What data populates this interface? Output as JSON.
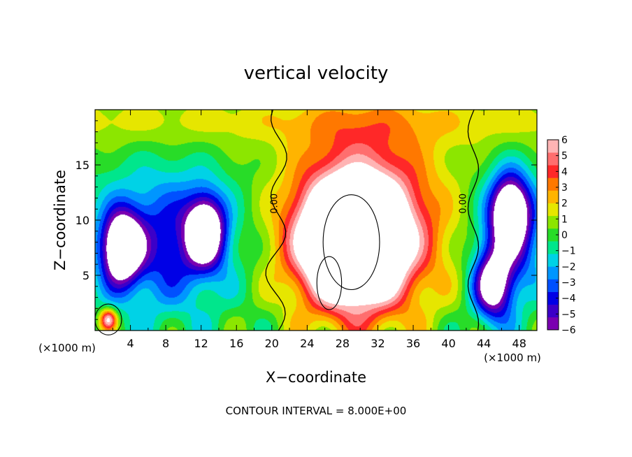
{
  "chart_data": {
    "type": "heatmap",
    "title": "vertical velocity",
    "xlabel": "X−coordinate",
    "ylabel": "Z−coordinate",
    "x_unit_label": "(×1000 m)",
    "y_unit_label": "(×1000 m)",
    "xlim": [
      0,
      50
    ],
    "ylim": [
      0,
      20
    ],
    "x_ticks": [
      4,
      8,
      12,
      16,
      20,
      24,
      28,
      32,
      36,
      40,
      44,
      48
    ],
    "y_ticks": [
      5,
      10,
      15
    ],
    "grid": false,
    "footnote": "CONTOUR INTERVAL = 8.000E+00",
    "contour_labels": [
      "0.00",
      "0.00"
    ],
    "colorbar": {
      "ticks": [
        "6",
        "5",
        "4",
        "3",
        "2",
        "1",
        "0",
        "−1",
        "−2",
        "−3",
        "−4",
        "−5",
        "−6"
      ],
      "range": [
        -6,
        6
      ],
      "colors": [
        "#7a00b0",
        "#3c00c8",
        "#0000e6",
        "#0050ff",
        "#0096ff",
        "#00d2e6",
        "#00e68c",
        "#28dc28",
        "#8ce600",
        "#e6e600",
        "#ffb400",
        "#ff7800",
        "#ff2828",
        "#ff6e6e",
        "#ffb4b4"
      ],
      "above_max_color": "#ffffff",
      "below_min_color": "#ffffff"
    },
    "features": [
      {
        "kind": "updraft",
        "x": 29,
        "z": 8,
        "peak": 12
      },
      {
        "kind": "updraft",
        "x": 1.5,
        "z": 1,
        "peak": 6
      },
      {
        "kind": "downdraft",
        "x": 3,
        "z": 7.5,
        "peak": -9
      },
      {
        "kind": "downdraft",
        "x": 12.5,
        "z": 9,
        "peak": -8
      },
      {
        "kind": "downdraft",
        "x": 47,
        "z": 11,
        "peak": -8
      },
      {
        "kind": "downdraft",
        "x": 45,
        "z": 4,
        "peak": -7
      }
    ]
  }
}
